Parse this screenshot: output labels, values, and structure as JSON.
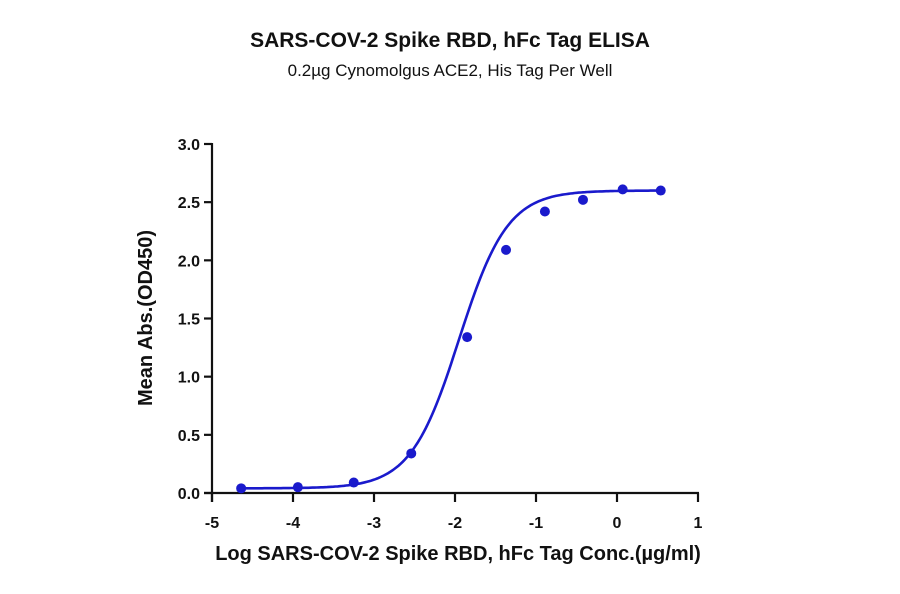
{
  "chart_data": {
    "type": "line",
    "title": "SARS-COV-2 Spike RBD, hFc Tag ELISA",
    "subtitle": "0.2µg Cynomolgus ACE2, His Tag Per Well",
    "xlabel": "Log SARS-COV-2 Spike RBD, hFc Tag Conc.(µg/ml)",
    "ylabel": "Mean Abs.(OD450)",
    "xlim": [
      -5,
      1
    ],
    "ylim": [
      0,
      3.0
    ],
    "x_ticks": [
      "-5",
      "-4",
      "-3",
      "-2",
      "-1",
      "0",
      "1"
    ],
    "y_ticks": [
      "0.0",
      "0.5",
      "1.0",
      "1.5",
      "2.0",
      "2.5",
      "3.0"
    ],
    "grid": false,
    "legend": null,
    "series": [
      {
        "name": "Mean Abs.(OD450)",
        "color": "#1a1acc",
        "marker": "circle",
        "fit": "4-parameter logistic curve",
        "x": [
          -4.64,
          -3.94,
          -3.25,
          -2.54,
          -1.85,
          -1.37,
          -0.89,
          -0.42,
          0.07,
          0.54
        ],
        "values": [
          0.04,
          0.05,
          0.09,
          0.34,
          1.34,
          2.09,
          2.42,
          2.52,
          2.61,
          2.6
        ]
      }
    ]
  }
}
